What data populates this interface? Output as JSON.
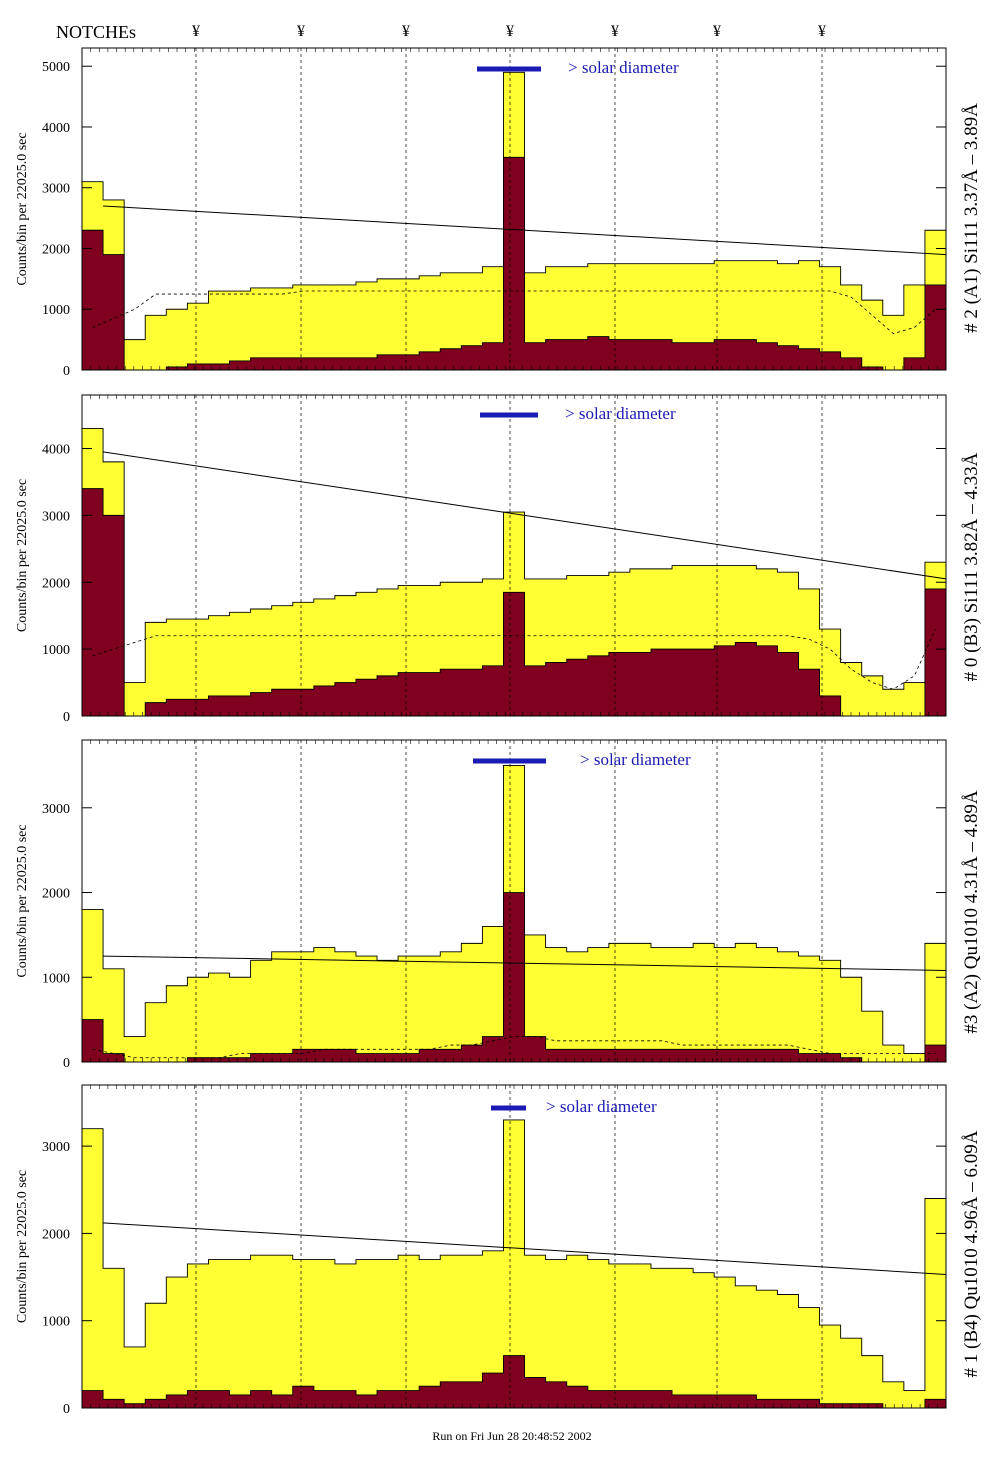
{
  "header": {
    "notches_label": "NOTCHEs",
    "notch_marker": "¥"
  },
  "footer": {
    "run_text": "Run on Fri Jun 28 20:48:52 2002"
  },
  "colors": {
    "total_fill": "#ffff33",
    "peak_fill": "#800020",
    "solar_bar": "#1a1ab4",
    "outline": "#000000"
  },
  "chart_data": [
    {
      "type": "bar",
      "title": "# 2 (A1) Si111  3.37Å – 3.89Å",
      "ylabel": "Counts/bin per  22025.0 sec",
      "ylim": [
        0,
        5300
      ],
      "yticks": [
        0,
        1000,
        2000,
        3000,
        4000,
        5000
      ],
      "solar_label": "> solar diameter",
      "grid": false,
      "series": [
        {
          "values": [
            3100,
            2800,
            500,
            900,
            1000,
            1100,
            1300,
            1300,
            1350,
            1350,
            1400,
            1400,
            1400,
            1450,
            1500,
            1500,
            1550,
            1600,
            1600,
            1700,
            4900,
            1600,
            1700,
            1700,
            1750,
            1750,
            1750,
            1750,
            1750,
            1750,
            1800,
            1800,
            1800,
            1750,
            1800,
            1700,
            1400,
            1150,
            900,
            1400,
            2300
          ]
        },
        {
          "values": [
            2300,
            1900,
            0,
            0,
            50,
            100,
            100,
            150,
            200,
            200,
            200,
            200,
            200,
            200,
            250,
            250,
            300,
            350,
            400,
            450,
            3500,
            450,
            500,
            500,
            550,
            500,
            500,
            500,
            450,
            450,
            500,
            500,
            450,
            400,
            350,
            300,
            200,
            50,
            0,
            200,
            1400
          ]
        }
      ],
      "fit_line": [
        2700,
        1900
      ],
      "baseline": [
        700,
        850,
        1000,
        1250,
        1250,
        1250,
        1250,
        1250,
        1250,
        1250,
        1300,
        1300,
        1300,
        1300,
        1300,
        1300,
        1300,
        1300,
        1300,
        1300,
        1300,
        1300,
        1300,
        1300,
        1300,
        1300,
        1300,
        1300,
        1300,
        1300,
        1300,
        1300,
        1300,
        1300,
        1300,
        1300,
        1200,
        900,
        600,
        700,
        1000
      ]
    },
    {
      "type": "bar",
      "title": "# 0 (B3) Si111  3.82Å – 4.33Å",
      "ylabel": "Counts/bin per  22025.0 sec",
      "ylim": [
        0,
        4800
      ],
      "yticks": [
        0,
        1000,
        2000,
        3000,
        4000
      ],
      "solar_label": "> solar diameter",
      "grid": false,
      "series": [
        {
          "values": [
            4300,
            3800,
            500,
            1400,
            1450,
            1450,
            1500,
            1550,
            1600,
            1650,
            1700,
            1750,
            1800,
            1850,
            1900,
            1950,
            1950,
            2000,
            2000,
            2050,
            3050,
            2050,
            2050,
            2100,
            2100,
            2150,
            2200,
            2200,
            2250,
            2250,
            2250,
            2250,
            2200,
            2150,
            1900,
            1300,
            800,
            600,
            400,
            500,
            2300
          ]
        },
        {
          "values": [
            3400,
            3000,
            0,
            200,
            250,
            250,
            300,
            300,
            350,
            400,
            400,
            450,
            500,
            550,
            600,
            650,
            650,
            700,
            700,
            750,
            1850,
            750,
            800,
            850,
            900,
            950,
            950,
            1000,
            1000,
            1000,
            1050,
            1100,
            1050,
            950,
            700,
            300,
            0,
            0,
            0,
            0,
            1900
          ]
        }
      ],
      "fit_line": [
        3950,
        2050
      ],
      "baseline": [
        900,
        1000,
        1100,
        1200,
        1200,
        1200,
        1200,
        1200,
        1200,
        1200,
        1200,
        1200,
        1200,
        1200,
        1200,
        1200,
        1200,
        1200,
        1200,
        1200,
        1200,
        1200,
        1200,
        1200,
        1200,
        1200,
        1200,
        1200,
        1200,
        1200,
        1200,
        1200,
        1200,
        1200,
        1150,
        1000,
        700,
        500,
        400,
        600,
        1300
      ]
    },
    {
      "type": "bar",
      "title": "#3 (A2) Qu1010  4.31Å – 4.89Å",
      "ylabel": "Counts/bin per  22025.0 sec",
      "ylim": [
        0,
        3800
      ],
      "yticks": [
        0,
        1000,
        2000,
        3000
      ],
      "solar_label": "> solar diameter",
      "grid": false,
      "series": [
        {
          "values": [
            1800,
            1100,
            300,
            700,
            900,
            1000,
            1050,
            1000,
            1200,
            1300,
            1300,
            1350,
            1300,
            1250,
            1200,
            1250,
            1250,
            1300,
            1400,
            1600,
            3500,
            1500,
            1350,
            1300,
            1350,
            1400,
            1400,
            1350,
            1350,
            1400,
            1350,
            1400,
            1350,
            1300,
            1250,
            1200,
            1000,
            600,
            200,
            100,
            1400
          ]
        },
        {
          "values": [
            500,
            100,
            0,
            0,
            0,
            50,
            50,
            50,
            100,
            100,
            150,
            150,
            150,
            100,
            100,
            100,
            150,
            150,
            200,
            300,
            2000,
            300,
            150,
            150,
            150,
            150,
            150,
            150,
            150,
            150,
            150,
            150,
            150,
            150,
            100,
            100,
            50,
            0,
            0,
            0,
            200
          ]
        }
      ],
      "fit_line": [
        1250,
        1080
      ],
      "baseline": [
        150,
        100,
        50,
        50,
        50,
        50,
        50,
        100,
        100,
        100,
        100,
        150,
        150,
        150,
        150,
        150,
        150,
        200,
        200,
        250,
        300,
        300,
        250,
        250,
        250,
        250,
        250,
        250,
        200,
        200,
        200,
        200,
        200,
        200,
        150,
        100,
        100,
        100,
        100,
        100,
        100
      ]
    },
    {
      "type": "bar",
      "title": "# 1 (B4) Qu1010 4.96Å – 6.09Å",
      "ylabel": "Counts/bin per  22025.0 sec",
      "ylim": [
        0,
        3700
      ],
      "yticks": [
        0,
        1000,
        2000,
        3000
      ],
      "solar_label": "> solar diameter",
      "grid": false,
      "series": [
        {
          "values": [
            3200,
            1600,
            700,
            1200,
            1500,
            1650,
            1700,
            1700,
            1750,
            1750,
            1700,
            1700,
            1650,
            1700,
            1700,
            1750,
            1700,
            1750,
            1750,
            1800,
            3300,
            1750,
            1700,
            1750,
            1700,
            1650,
            1650,
            1600,
            1600,
            1550,
            1500,
            1400,
            1350,
            1300,
            1150,
            950,
            800,
            600,
            300,
            200,
            2400
          ]
        },
        {
          "values": [
            200,
            100,
            50,
            100,
            150,
            200,
            200,
            150,
            200,
            150,
            250,
            200,
            200,
            150,
            200,
            200,
            250,
            300,
            300,
            400,
            600,
            350,
            300,
            250,
            200,
            200,
            200,
            200,
            150,
            150,
            150,
            150,
            100,
            100,
            100,
            50,
            50,
            50,
            0,
            0,
            100
          ]
        }
      ],
      "fit_line": [
        2120,
        1530
      ],
      "baseline": [
        0,
        0,
        0,
        0,
        0,
        0,
        0,
        0,
        0,
        0,
        0,
        0,
        0,
        0,
        0,
        0,
        0,
        0,
        0,
        0,
        0,
        0,
        0,
        0,
        0,
        0,
        0,
        0,
        0,
        0,
        0,
        0,
        0,
        0,
        0,
        0,
        0,
        0,
        0,
        0,
        0
      ]
    }
  ]
}
